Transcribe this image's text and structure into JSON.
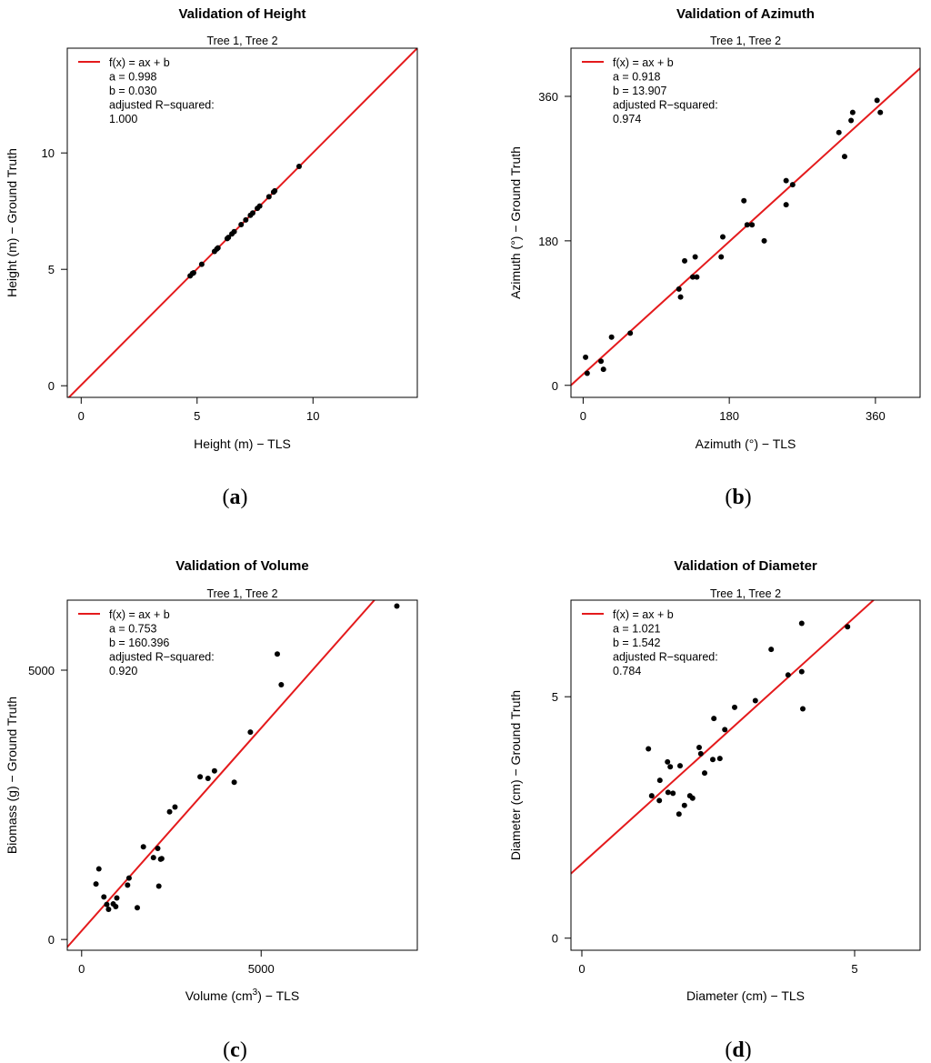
{
  "chart_data": [
    {
      "type": "scatter",
      "title": "Validation of Height",
      "subtitle": "Tree 1, Tree 2",
      "xlabel": "Height (m) − TLS",
      "ylabel": "Height (m) − Ground Truth",
      "xlim": [
        -0.6,
        14.5
      ],
      "ylim": [
        -0.5,
        14.5
      ],
      "xticks": [
        0,
        5,
        10
      ],
      "yticks": [
        0,
        5,
        10
      ],
      "fit": {
        "a": 0.998,
        "b": 0.03
      },
      "legend": [
        "f(x) = ax + b",
        "a = 0.998",
        "b = 0.030",
        "adjusted R−squared:",
        "1.000"
      ],
      "panel_label": "a",
      "points": [
        [
          4.7,
          4.72
        ],
        [
          4.8,
          4.82
        ],
        [
          4.85,
          4.85
        ],
        [
          5.2,
          5.22
        ],
        [
          5.75,
          5.77
        ],
        [
          5.85,
          5.87
        ],
        [
          5.9,
          5.92
        ],
        [
          6.3,
          6.32
        ],
        [
          6.35,
          6.37
        ],
        [
          6.5,
          6.52
        ],
        [
          6.6,
          6.62
        ],
        [
          6.9,
          6.92
        ],
        [
          7.1,
          7.12
        ],
        [
          7.3,
          7.32
        ],
        [
          7.4,
          7.42
        ],
        [
          7.6,
          7.62
        ],
        [
          7.7,
          7.72
        ],
        [
          8.1,
          8.12
        ],
        [
          8.3,
          8.32
        ],
        [
          8.35,
          8.37
        ],
        [
          9.4,
          9.42
        ]
      ]
    },
    {
      "type": "scatter",
      "title": "Validation of Azimuth",
      "subtitle": "Tree 1, Tree 2",
      "xlabel": "Azimuth (°) − TLS",
      "ylabel": "Azimuth (°) − Ground Truth",
      "xlim": [
        -15,
        415
      ],
      "ylim": [
        -15,
        420
      ],
      "xticks": [
        0,
        180,
        360
      ],
      "yticks": [
        0,
        180,
        360
      ],
      "fit": {
        "a": 0.918,
        "b": 13.907
      },
      "legend": [
        "f(x) = ax + b",
        "a = 0.918",
        "b = 13.907",
        "adjusted R−squared:",
        "0.974"
      ],
      "panel_label": "b",
      "points": [
        [
          3,
          35
        ],
        [
          5,
          15
        ],
        [
          22,
          30
        ],
        [
          25,
          20
        ],
        [
          35,
          60
        ],
        [
          58,
          65
        ],
        [
          118,
          120
        ],
        [
          120,
          110
        ],
        [
          125,
          155
        ],
        [
          135,
          135
        ],
        [
          138,
          160
        ],
        [
          140,
          135
        ],
        [
          170,
          160
        ],
        [
          172,
          185
        ],
        [
          198,
          230
        ],
        [
          202,
          200
        ],
        [
          208,
          200
        ],
        [
          223,
          180
        ],
        [
          250,
          255
        ],
        [
          250,
          225
        ],
        [
          258,
          250
        ],
        [
          315,
          315
        ],
        [
          322,
          285
        ],
        [
          330,
          330
        ],
        [
          332,
          340
        ],
        [
          362,
          355
        ],
        [
          366,
          340
        ]
      ]
    },
    {
      "type": "scatter",
      "title": "Validation of Volume",
      "subtitle": "Tree 1, Tree 2",
      "xlabel": "Volume (cm³) − TLS",
      "ylabel": "Biomass (g) − Ground Truth",
      "xlim": [
        -400,
        9350
      ],
      "ylim": [
        -200,
        6300
      ],
      "xticks": [
        0,
        5000
      ],
      "yticks": [
        0,
        5000
      ],
      "fit": {
        "a": 0.753,
        "b": 160.396
      },
      "legend": [
        "f(x) = ax + b",
        "a = 0.753",
        "b = 160.396",
        "adjusted R−squared:",
        "0.920"
      ],
      "panel_label": "c",
      "points": [
        [
          400,
          1030
        ],
        [
          480,
          1310
        ],
        [
          620,
          790
        ],
        [
          700,
          650
        ],
        [
          750,
          560
        ],
        [
          880,
          660
        ],
        [
          950,
          610
        ],
        [
          980,
          770
        ],
        [
          1280,
          1010
        ],
        [
          1320,
          1140
        ],
        [
          1550,
          590
        ],
        [
          1720,
          1720
        ],
        [
          2000,
          1520
        ],
        [
          2120,
          1690
        ],
        [
          2150,
          990
        ],
        [
          2200,
          1490
        ],
        [
          2230,
          1500
        ],
        [
          2450,
          2370
        ],
        [
          2600,
          2460
        ],
        [
          3300,
          3020
        ],
        [
          3520,
          2990
        ],
        [
          3700,
          3130
        ],
        [
          4250,
          2920
        ],
        [
          4700,
          3850
        ],
        [
          5450,
          5300
        ],
        [
          5560,
          4730
        ],
        [
          8780,
          6190
        ]
      ]
    },
    {
      "type": "scatter",
      "title": "Validation of Diameter",
      "subtitle": "Tree 1, Tree 2",
      "xlabel": "Diameter (cm) − TLS",
      "ylabel": "Diameter (cm) − Ground Truth",
      "xlim": [
        -0.2,
        6.2
      ],
      "ylim": [
        -0.25,
        7.0
      ],
      "xticks": [
        0,
        5
      ],
      "yticks": [
        0,
        5
      ],
      "fit": {
        "a": 1.021,
        "b": 1.542
      },
      "legend": [
        "f(x) = ax + b",
        "a = 1.021",
        "b = 1.542",
        "adjusted R−squared:",
        "0.784"
      ],
      "panel_label": "d",
      "points": [
        [
          1.22,
          3.92
        ],
        [
          1.28,
          2.95
        ],
        [
          1.42,
          2.85
        ],
        [
          1.43,
          3.27
        ],
        [
          1.57,
          3.65
        ],
        [
          1.58,
          3.02
        ],
        [
          1.62,
          3.55
        ],
        [
          1.67,
          3.0
        ],
        [
          1.78,
          2.57
        ],
        [
          1.8,
          3.57
        ],
        [
          1.88,
          2.75
        ],
        [
          1.98,
          2.95
        ],
        [
          2.03,
          2.9
        ],
        [
          2.15,
          3.95
        ],
        [
          2.18,
          3.82
        ],
        [
          2.25,
          3.42
        ],
        [
          2.4,
          3.7
        ],
        [
          2.42,
          4.55
        ],
        [
          2.53,
          3.72
        ],
        [
          2.62,
          4.32
        ],
        [
          2.8,
          4.78
        ],
        [
          3.18,
          4.92
        ],
        [
          3.47,
          5.98
        ],
        [
          3.78,
          5.45
        ],
        [
          4.03,
          5.52
        ],
        [
          4.03,
          6.52
        ],
        [
          4.05,
          4.75
        ],
        [
          4.87,
          6.45
        ]
      ]
    }
  ]
}
